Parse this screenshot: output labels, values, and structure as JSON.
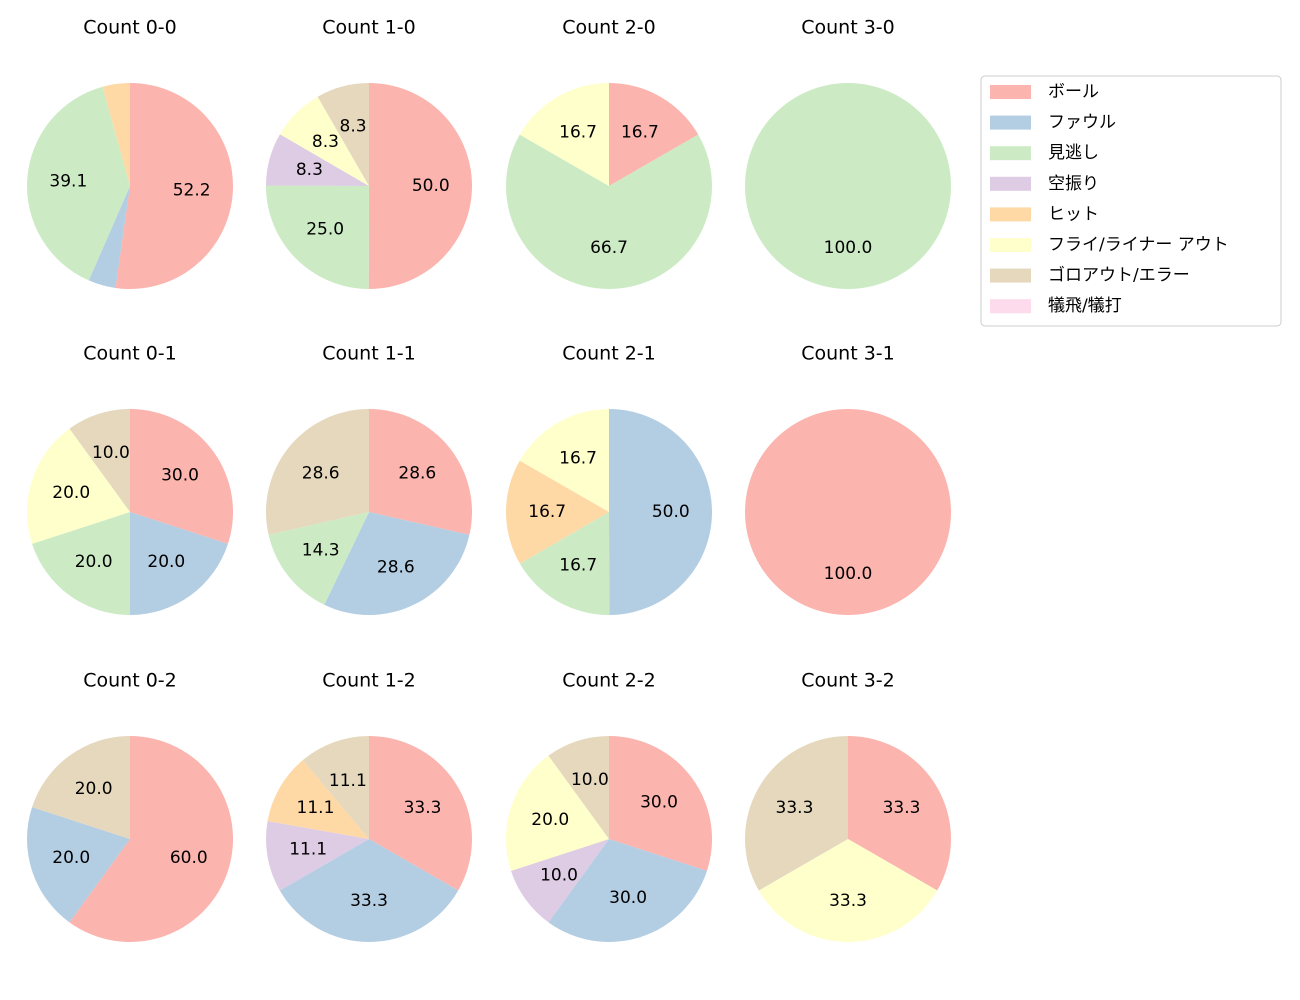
{
  "legend": {
    "labels": [
      "ボール",
      "ファウル",
      "見逃し",
      "空振り",
      "ヒット",
      "フライ/ライナー アウト",
      "ゴロアウト/エラー",
      "犠飛/犠打"
    ],
    "colors": [
      "#fbb4ae",
      "#b3cde3",
      "#ccebc5",
      "#decbe4",
      "#fed9a6",
      "#ffffcc",
      "#e5d8bd",
      "#fddaec"
    ],
    "position": "upper right"
  },
  "chart_data": [
    {
      "type": "pie",
      "title": "Count 0-0",
      "values": [
        52.2,
        4.3,
        39.1,
        0,
        4.3,
        0,
        0,
        0
      ],
      "value_labels": [
        "52.2",
        null,
        "39.1",
        null,
        null,
        null,
        null,
        null
      ]
    },
    {
      "type": "pie",
      "title": "Count 1-0",
      "values": [
        50,
        0,
        25,
        8.3,
        0,
        8.3,
        8.3,
        0
      ],
      "value_labels": [
        "50.0",
        null,
        "25.0",
        "8.3",
        null,
        "8.3",
        "8.3",
        null
      ]
    },
    {
      "type": "pie",
      "title": "Count 2-0",
      "values": [
        16.7,
        0,
        66.7,
        0,
        0,
        16.7,
        0,
        0
      ],
      "value_labels": [
        "16.7",
        null,
        "66.7",
        null,
        null,
        "16.7",
        null,
        null
      ]
    },
    {
      "type": "pie",
      "title": "Count 3-0",
      "values": [
        0,
        0,
        100,
        0,
        0,
        0,
        0,
        0
      ],
      "value_labels": [
        null,
        null,
        "100.0",
        null,
        null,
        null,
        null,
        null
      ]
    },
    {
      "type": "pie",
      "title": "Count 0-1",
      "values": [
        30,
        20,
        20,
        0,
        0,
        20,
        10,
        0
      ],
      "value_labels": [
        "30.0",
        "20.0",
        "20.0",
        null,
        null,
        "20.0",
        "10.0",
        null
      ]
    },
    {
      "type": "pie",
      "title": "Count 1-1",
      "values": [
        28.6,
        28.6,
        14.3,
        0,
        0,
        0,
        28.6,
        0
      ],
      "value_labels": [
        "28.6",
        "28.6",
        "14.3",
        null,
        null,
        null,
        "28.6",
        null
      ]
    },
    {
      "type": "pie",
      "title": "Count 2-1",
      "values": [
        0,
        50,
        16.7,
        0,
        16.7,
        16.7,
        0,
        0
      ],
      "value_labels": [
        null,
        "50.0",
        "16.7",
        null,
        "16.7",
        "16.7",
        null,
        null
      ]
    },
    {
      "type": "pie",
      "title": "Count 3-1",
      "values": [
        100,
        0,
        0,
        0,
        0,
        0,
        0,
        0
      ],
      "value_labels": [
        "100.0",
        null,
        null,
        null,
        null,
        null,
        null,
        null
      ]
    },
    {
      "type": "pie",
      "title": "Count 0-2",
      "values": [
        60,
        20,
        0,
        0,
        0,
        0,
        20,
        0
      ],
      "value_labels": [
        "60.0",
        "20.0",
        null,
        null,
        null,
        null,
        "20.0",
        null
      ]
    },
    {
      "type": "pie",
      "title": "Count 1-2",
      "values": [
        33.3,
        33.3,
        0,
        11.1,
        11.1,
        0,
        11.1,
        0
      ],
      "value_labels": [
        "33.3",
        "33.3",
        null,
        "11.1",
        "11.1",
        null,
        "11.1",
        null
      ]
    },
    {
      "type": "pie",
      "title": "Count 2-2",
      "values": [
        30,
        30,
        0,
        10,
        0,
        20,
        10,
        0
      ],
      "value_labels": [
        "30.0",
        "30.0",
        null,
        "10.0",
        null,
        "20.0",
        "10.0",
        null
      ]
    },
    {
      "type": "pie",
      "title": "Count 3-2",
      "values": [
        33.3,
        0,
        0,
        0,
        0,
        33.3,
        33.3,
        0
      ],
      "value_labels": [
        "33.3",
        null,
        null,
        null,
        null,
        "33.3",
        "33.3",
        null
      ]
    }
  ]
}
